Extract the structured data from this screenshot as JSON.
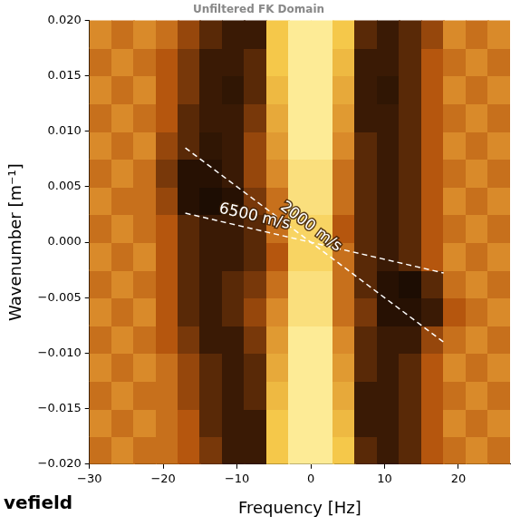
{
  "chart_data": {
    "type": "heatmap",
    "title": "Unfiltered FK Domain",
    "x_label": "Frequency [Hz]",
    "y_label": "Wavenumber [m⁻¹]",
    "footer": "vefield",
    "xlim": [
      -30,
      27
    ],
    "ylim": [
      -0.02,
      0.02
    ],
    "xticks": [
      {
        "value": -30,
        "label": "−30"
      },
      {
        "value": -20,
        "label": "−20"
      },
      {
        "value": -10,
        "label": "−10"
      },
      0,
      10,
      20
    ],
    "yticks": [
      {
        "value": -0.02,
        "label": "−0.020"
      },
      {
        "value": -0.015,
        "label": "−0.015"
      },
      {
        "value": -0.01,
        "label": "−0.010"
      },
      {
        "value": -0.005,
        "label": "−0.005"
      },
      {
        "value": 0,
        "label": "0.000"
      },
      {
        "value": 0.005,
        "label": "0.005"
      },
      {
        "value": 0.01,
        "label": "0.010"
      },
      {
        "value": 0.015,
        "label": "0.015"
      },
      {
        "value": 0.02,
        "label": "0.020"
      }
    ],
    "grid": false,
    "x_bins": [
      -30,
      -27,
      -24,
      -21,
      -18,
      -15,
      -12,
      -9,
      -6,
      -3,
      0,
      3,
      6,
      9,
      12,
      15,
      18,
      21,
      24,
      27
    ],
    "y_bins": [
      -0.02,
      -0.0175,
      -0.015,
      -0.0125,
      -0.01,
      -0.0075,
      -0.005,
      -0.0025,
      0,
      0.0025,
      0.005,
      0.0075,
      0.01,
      0.0125,
      0.015,
      0.0175,
      0.02
    ],
    "cells": [
      [
        0.55,
        0.6,
        0.55,
        0.55,
        0.5,
        0.4,
        0.3,
        0.3,
        0.8,
        0.95,
        0.95,
        0.8,
        0.35,
        0.3,
        0.35,
        0.5,
        0.55,
        0.6,
        0.55
      ],
      [
        0.6,
        0.55,
        0.6,
        0.55,
        0.5,
        0.35,
        0.3,
        0.3,
        0.8,
        0.95,
        0.95,
        0.75,
        0.3,
        0.3,
        0.35,
        0.5,
        0.6,
        0.55,
        0.6
      ],
      [
        0.55,
        0.6,
        0.55,
        0.55,
        0.45,
        0.35,
        0.3,
        0.35,
        0.75,
        0.95,
        0.95,
        0.7,
        0.3,
        0.3,
        0.35,
        0.5,
        0.55,
        0.6,
        0.55
      ],
      [
        0.6,
        0.55,
        0.6,
        0.55,
        0.45,
        0.35,
        0.3,
        0.35,
        0.7,
        0.95,
        0.95,
        0.65,
        0.35,
        0.3,
        0.35,
        0.5,
        0.6,
        0.55,
        0.6
      ],
      [
        0.55,
        0.6,
        0.55,
        0.5,
        0.4,
        0.3,
        0.3,
        0.4,
        0.65,
        0.95,
        0.95,
        0.6,
        0.35,
        0.3,
        0.3,
        0.45,
        0.55,
        0.6,
        0.55
      ],
      [
        0.6,
        0.55,
        0.6,
        0.5,
        0.35,
        0.3,
        0.35,
        0.45,
        0.6,
        0.9,
        0.9,
        0.55,
        0.4,
        0.2,
        0.2,
        0.3,
        0.5,
        0.55,
        0.6
      ],
      [
        0.55,
        0.6,
        0.55,
        0.5,
        0.35,
        0.3,
        0.35,
        0.4,
        0.55,
        0.9,
        0.9,
        0.55,
        0.35,
        0.2,
        0.15,
        0.35,
        0.55,
        0.6,
        0.55
      ],
      [
        0.6,
        0.55,
        0.6,
        0.5,
        0.35,
        0.3,
        0.3,
        0.35,
        0.5,
        0.85,
        0.85,
        0.55,
        0.35,
        0.3,
        0.35,
        0.5,
        0.6,
        0.55,
        0.6
      ],
      [
        0.55,
        0.6,
        0.55,
        0.5,
        0.35,
        0.3,
        0.3,
        0.35,
        0.55,
        0.85,
        0.85,
        0.5,
        0.35,
        0.3,
        0.35,
        0.5,
        0.55,
        0.6,
        0.55
      ],
      [
        0.6,
        0.55,
        0.55,
        0.45,
        0.2,
        0.15,
        0.2,
        0.4,
        0.55,
        0.9,
        0.9,
        0.55,
        0.35,
        0.3,
        0.35,
        0.5,
        0.6,
        0.55,
        0.6
      ],
      [
        0.55,
        0.6,
        0.55,
        0.4,
        0.2,
        0.2,
        0.3,
        0.45,
        0.6,
        0.9,
        0.9,
        0.55,
        0.35,
        0.3,
        0.35,
        0.5,
        0.55,
        0.6,
        0.55
      ],
      [
        0.6,
        0.55,
        0.6,
        0.45,
        0.35,
        0.25,
        0.3,
        0.45,
        0.65,
        0.95,
        0.95,
        0.6,
        0.35,
        0.3,
        0.35,
        0.5,
        0.6,
        0.55,
        0.6
      ],
      [
        0.55,
        0.6,
        0.55,
        0.5,
        0.35,
        0.3,
        0.3,
        0.4,
        0.7,
        0.95,
        0.95,
        0.65,
        0.3,
        0.3,
        0.35,
        0.5,
        0.55,
        0.6,
        0.55
      ],
      [
        0.6,
        0.55,
        0.6,
        0.5,
        0.4,
        0.3,
        0.25,
        0.35,
        0.75,
        0.95,
        0.95,
        0.7,
        0.3,
        0.25,
        0.35,
        0.5,
        0.6,
        0.55,
        0.6
      ],
      [
        0.55,
        0.6,
        0.55,
        0.5,
        0.4,
        0.3,
        0.3,
        0.35,
        0.8,
        0.95,
        0.95,
        0.75,
        0.3,
        0.3,
        0.35,
        0.5,
        0.55,
        0.6,
        0.55
      ],
      [
        0.6,
        0.55,
        0.6,
        0.55,
        0.45,
        0.35,
        0.3,
        0.3,
        0.8,
        0.95,
        0.95,
        0.8,
        0.35,
        0.3,
        0.35,
        0.45,
        0.6,
        0.55,
        0.6
      ]
    ],
    "annotations": [
      {
        "text": "2000 m/s",
        "velocity": 2000,
        "f_range": [
          -17,
          18
        ],
        "line_style": "dashed",
        "color": "#ffffff"
      },
      {
        "text": "6500 m/s",
        "velocity": 6500,
        "f_range": [
          -17,
          18
        ],
        "line_style": "dashed",
        "color": "#ffffff"
      }
    ]
  }
}
